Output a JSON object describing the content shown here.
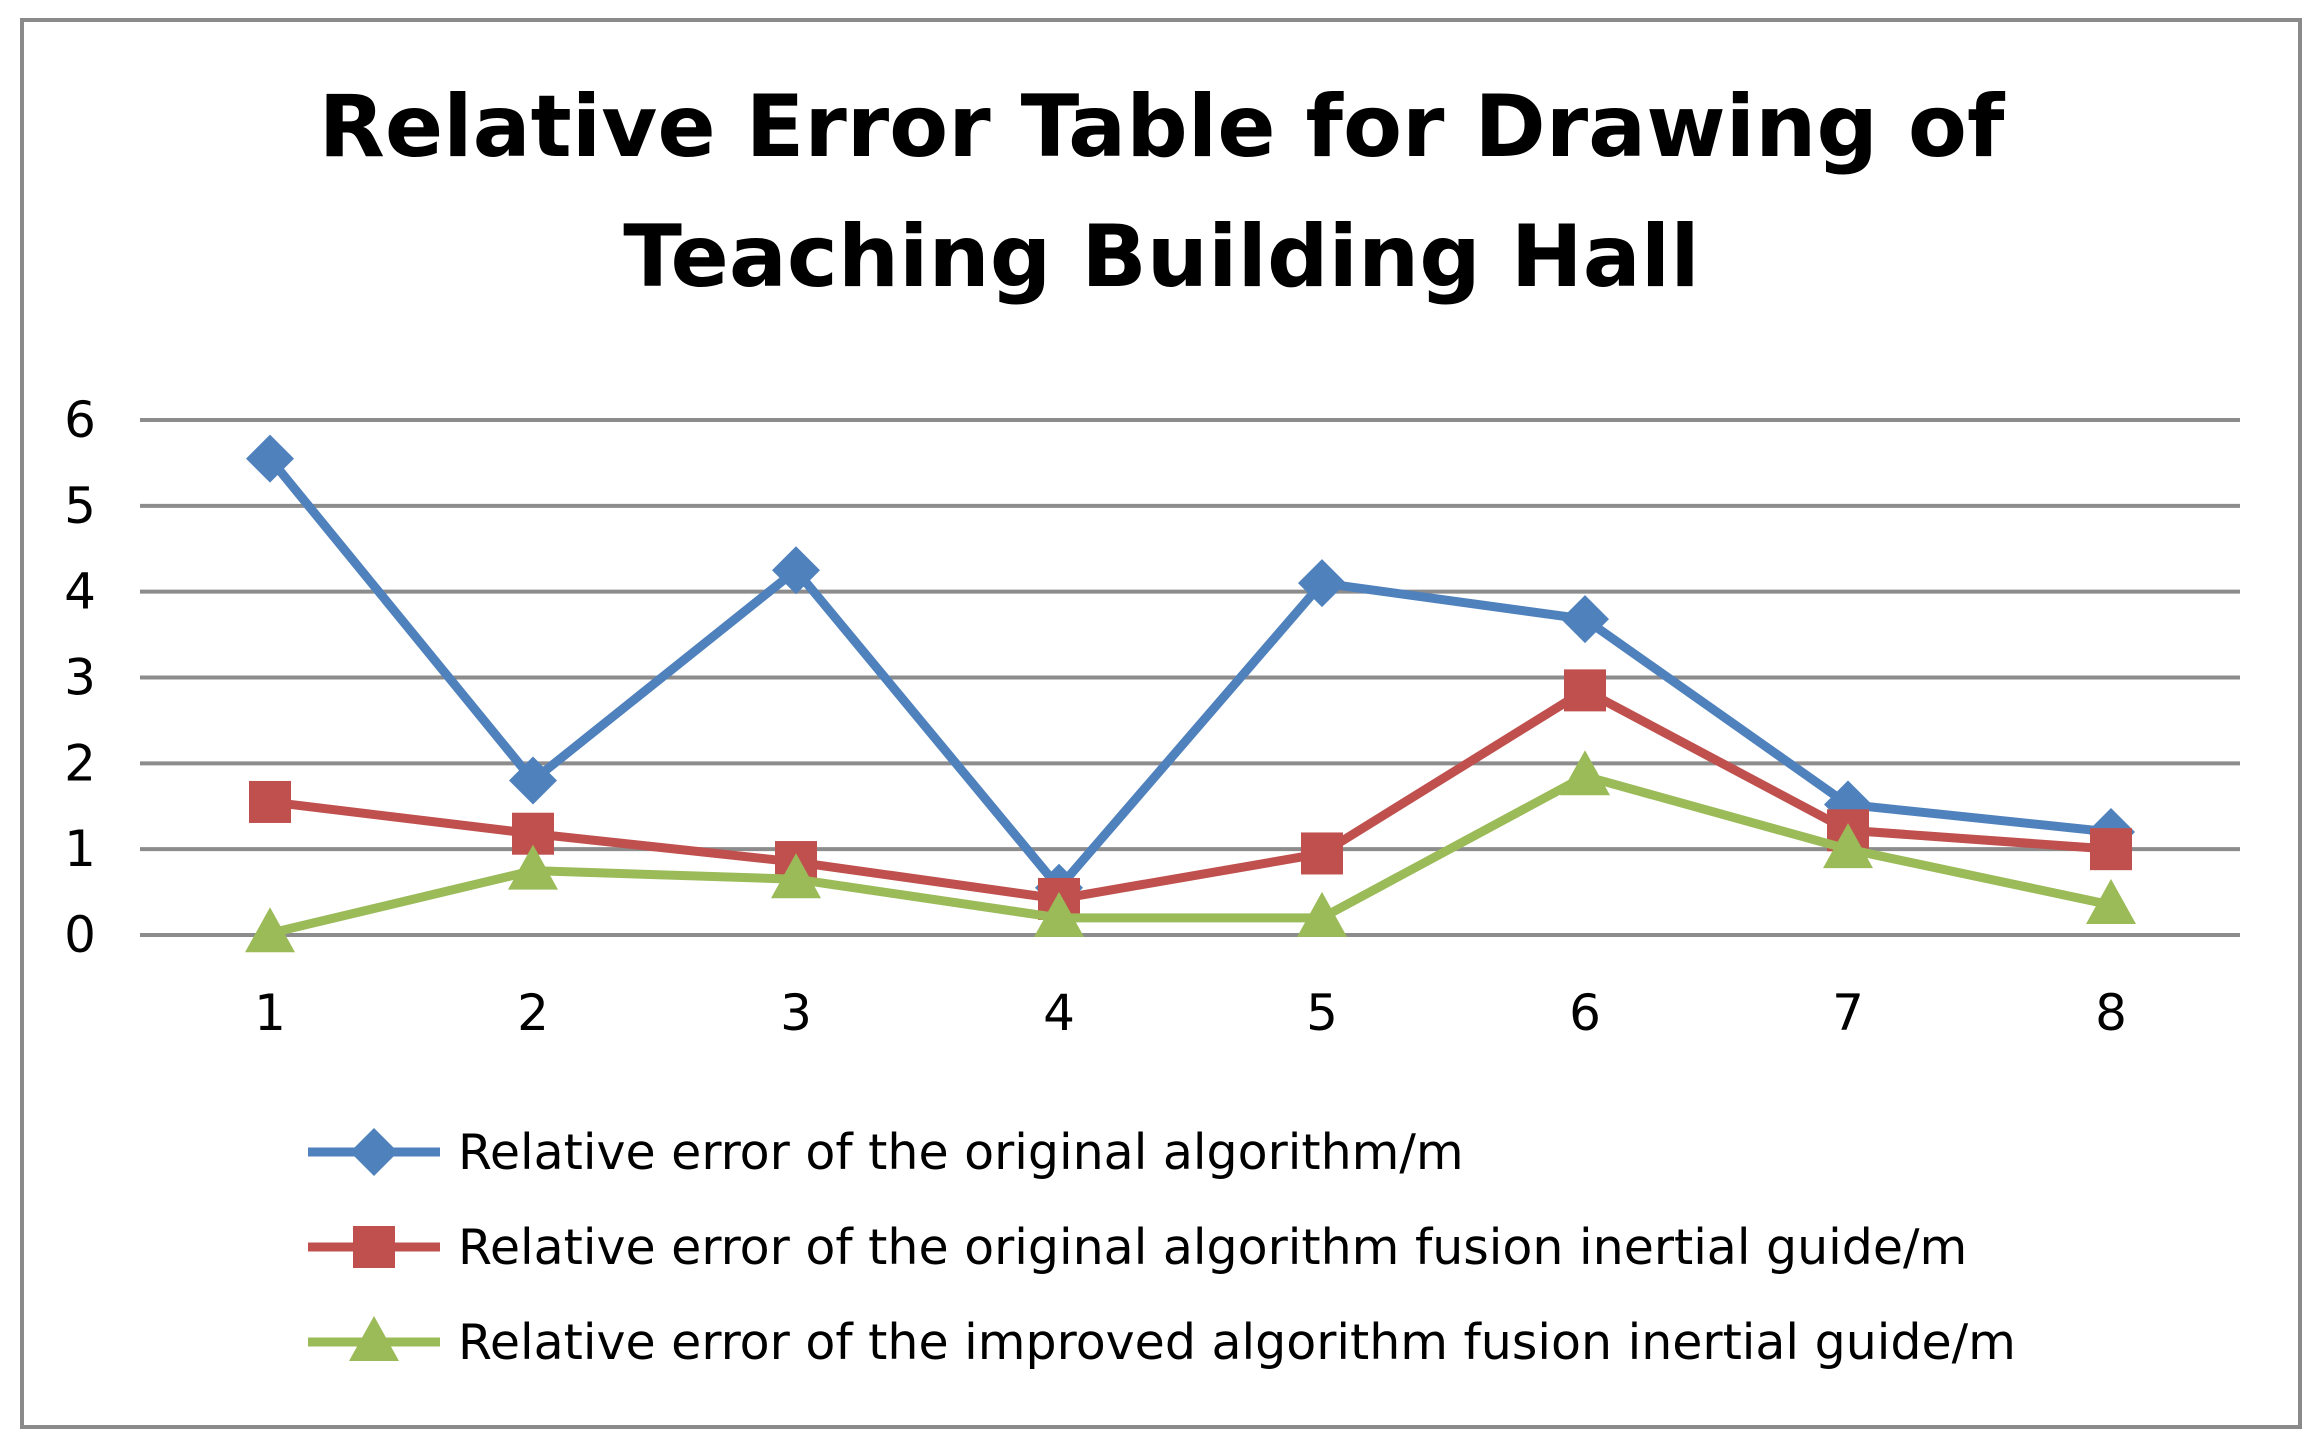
{
  "chart_data": {
    "type": "line",
    "title_lines": [
      "Relative Error Table for Drawing of",
      "Teaching Building Hall"
    ],
    "xlabel": "",
    "ylabel": "",
    "categories": [
      "1",
      "2",
      "3",
      "4",
      "5",
      "6",
      "7",
      "8"
    ],
    "ylim": [
      0,
      6
    ],
    "yticks": [
      "0",
      "1",
      "2",
      "3",
      "4",
      "5",
      "6"
    ],
    "grid": "horizontal",
    "legend_position": "bottom",
    "series": [
      {
        "name": "Relative error of the original algorithm/m",
        "color": "#4f81bd",
        "marker": "diamond",
        "values": [
          5.55,
          1.8,
          4.25,
          0.55,
          4.1,
          3.68,
          1.52,
          1.2
        ]
      },
      {
        "name": "Relative error of the original algorithm fusion inertial guide/m",
        "color": "#c0504d",
        "marker": "square",
        "values": [
          1.55,
          1.18,
          0.85,
          0.42,
          0.95,
          2.85,
          1.22,
          1.0
        ]
      },
      {
        "name": "Relative error of the improved algorithm fusion inertial guide/m",
        "color": "#9bbb59",
        "marker": "triangle",
        "values": [
          0.02,
          0.75,
          0.65,
          0.2,
          0.2,
          1.85,
          1.0,
          0.35
        ]
      }
    ]
  }
}
